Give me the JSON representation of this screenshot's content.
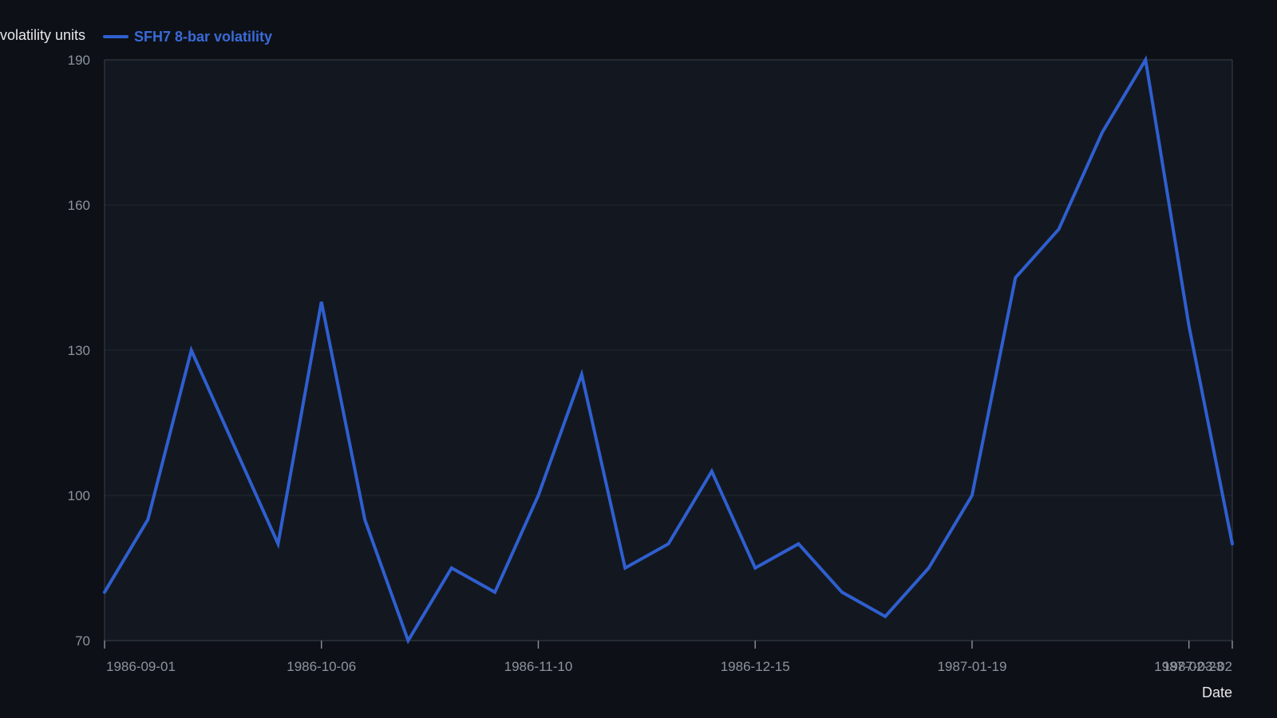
{
  "chart_data": {
    "type": "line",
    "title": "",
    "xlabel": "Date",
    "ylabel": "volatility units",
    "ylim": [
      70,
      190
    ],
    "yticks": [
      70,
      100,
      130,
      160,
      190
    ],
    "xticks": [
      "1986-09-01",
      "1986-10-06",
      "1986-11-10",
      "1986-12-15",
      "1987-01-19",
      "1987-02-23",
      "1987-03-02"
    ],
    "grid": true,
    "legend_position": "top-left",
    "colors": {
      "series": "#2f5fd0",
      "legend_text": "#3a6ad8"
    },
    "series": [
      {
        "name": "SFH7 8-bar volatility",
        "x": [
          "1986-09-01",
          "1986-09-08",
          "1986-09-15",
          "1986-09-22",
          "1986-09-29",
          "1986-10-06",
          "1986-10-13",
          "1986-10-20",
          "1986-10-27",
          "1986-11-03",
          "1986-11-10",
          "1986-11-17",
          "1986-11-24",
          "1986-12-01",
          "1986-12-08",
          "1986-12-15",
          "1986-12-22",
          "1986-12-29",
          "1987-01-05",
          "1987-01-12",
          "1987-01-19",
          "1987-01-26",
          "1987-02-02",
          "1987-02-09",
          "1987-02-16",
          "1987-02-23",
          "1987-03-02"
        ],
        "values": [
          80,
          95,
          130,
          110,
          90,
          140,
          95,
          70,
          85,
          80,
          100,
          125,
          85,
          90,
          105,
          85,
          90,
          80,
          75,
          85,
          100,
          145,
          155,
          175,
          190,
          135,
          90
        ]
      }
    ]
  }
}
